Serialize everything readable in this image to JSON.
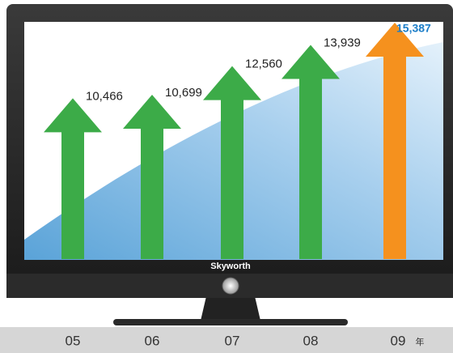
{
  "chart_data": {
    "type": "bar",
    "brand": "Skyworth",
    "categories": [
      "05",
      "06",
      "07",
      "08",
      "09"
    ],
    "values": [
      10466,
      10699,
      12560,
      13939,
      15387
    ],
    "value_labels": [
      "10,466",
      "10,699",
      "12,560",
      "13,939",
      "15,387"
    ],
    "colors": [
      "#3cab48",
      "#3cab48",
      "#3cab48",
      "#3cab48",
      "#f5911e"
    ],
    "unit": "年"
  }
}
